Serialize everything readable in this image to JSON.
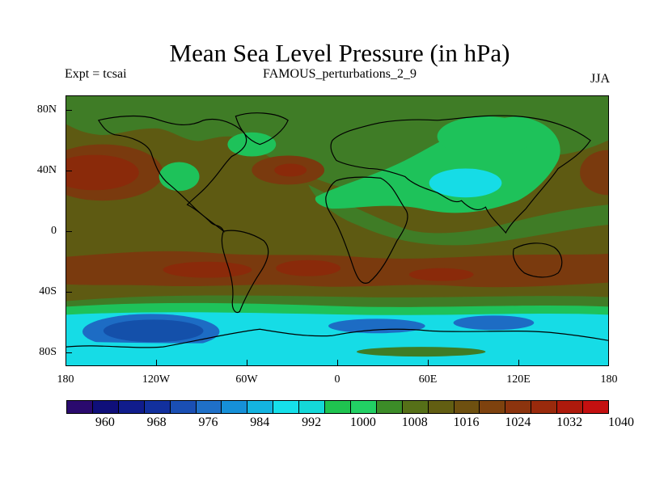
{
  "header": {
    "title": "Mean Sea Level Pressure (in hPa)",
    "left": "Expt = tcsai",
    "center": "FAMOUS_perturbations_2_9",
    "right": "JJA"
  },
  "axes": {
    "lat_labels": [
      "80N",
      "40N",
      "0",
      "40S",
      "80S"
    ],
    "lon_labels": [
      "180",
      "120W",
      "60W",
      "0",
      "60E",
      "120E",
      "180"
    ]
  },
  "colorbar": {
    "labels": [
      "960",
      "968",
      "976",
      "984",
      "992",
      "1000",
      "1008",
      "1016",
      "1024",
      "1032",
      "1040"
    ],
    "colors": [
      "#2a0a6e",
      "#0f0f7a",
      "#101c8c",
      "#12309e",
      "#1a4fb4",
      "#1f70c8",
      "#1690d8",
      "#14b4e0",
      "#16e0ea",
      "#14d8d8",
      "#1fc450",
      "#22d064",
      "#3c8c28",
      "#567018",
      "#625e12",
      "#6e5010",
      "#7e420e",
      "#8c340e",
      "#9a2a0c",
      "#ae1a0c",
      "#c41010"
    ],
    "first_value": 956,
    "step": 4
  },
  "legend_colors": {
    "ocean_mid": "#5e5a12",
    "high": "#7a3a0e",
    "high_core": "#8a2a0a",
    "green": "#3f7c26",
    "bright_green": "#1ec25a",
    "cyan": "#16dce6",
    "low": "#1d6cc4",
    "low_core": "#1450aa",
    "coast": "#000000"
  }
}
